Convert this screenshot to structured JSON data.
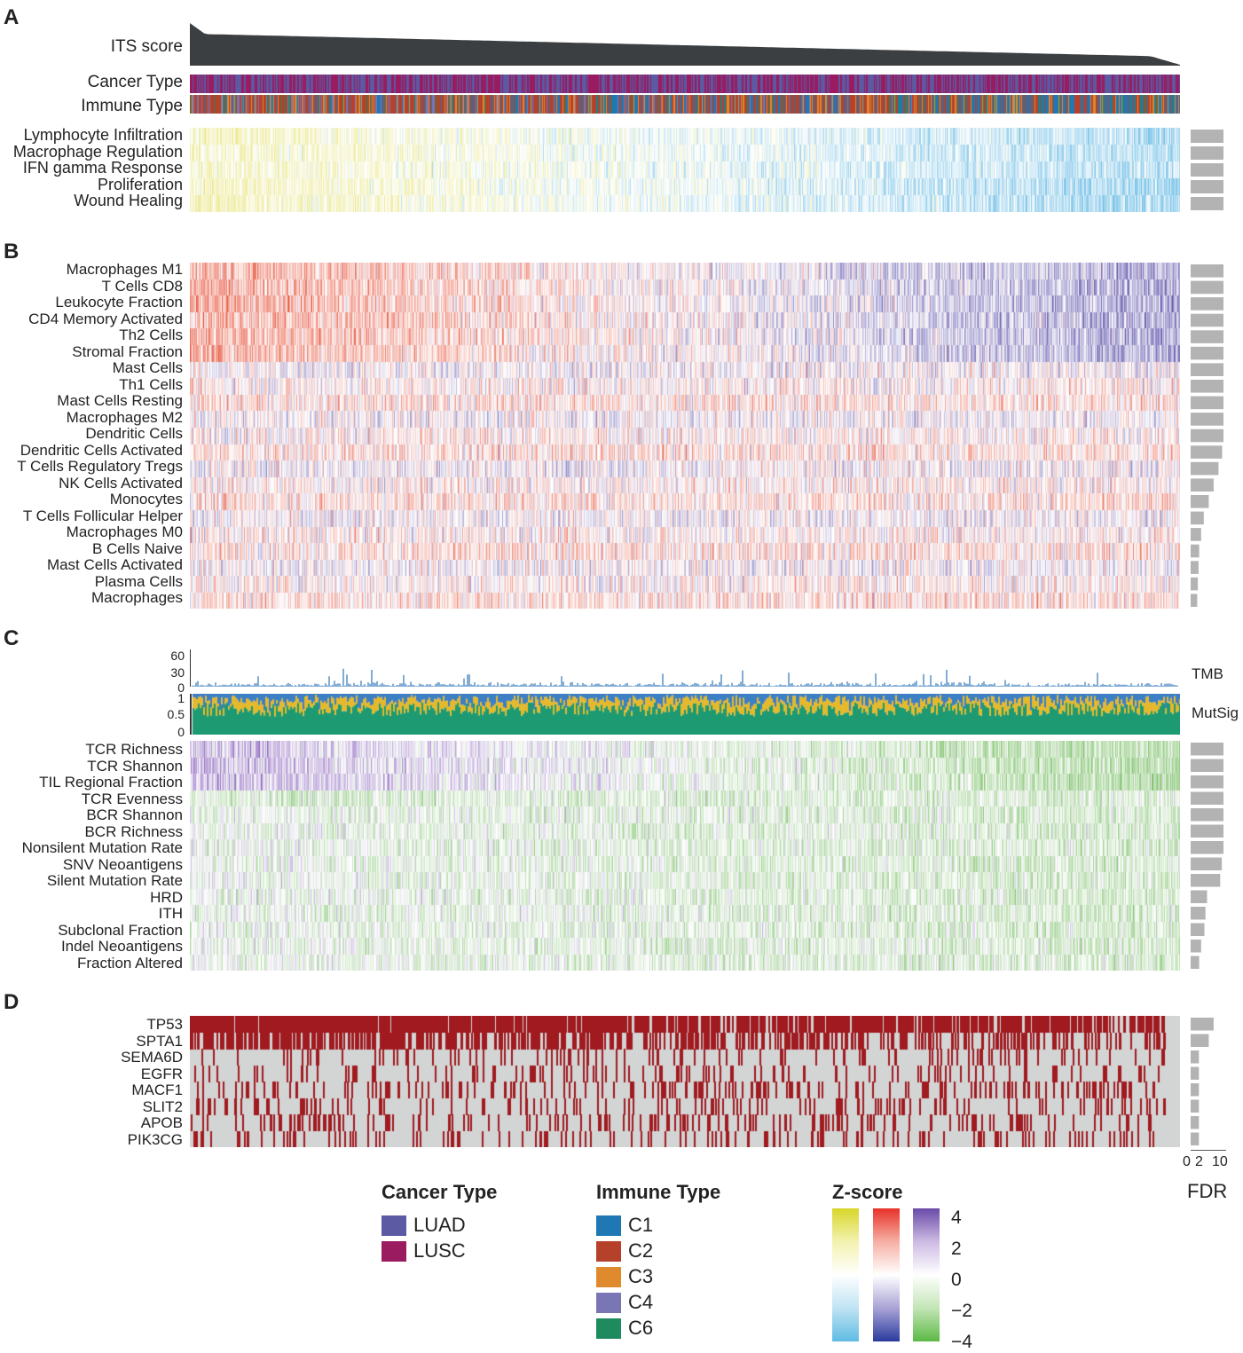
{
  "panels": {
    "A": "A",
    "B": "B",
    "C": "C",
    "D": "D"
  },
  "panelA": {
    "its_label": "ITS score",
    "cancer_label": "Cancer Type",
    "immune_label": "Immune Type",
    "rows": [
      "Lymphocyte Infiltration",
      "Macrophage Regulation",
      "IFN gamma Response",
      "Proliferation",
      "Wound Healing"
    ],
    "fdr": [
      10,
      10,
      10,
      10,
      10
    ]
  },
  "panelB": {
    "rows": [
      "Macrophages M1",
      "T Cells CD8",
      "Leukocyte Fraction",
      "CD4 Memory Activated",
      "Th2 Cells",
      "Stromal Fraction",
      "Mast Cells",
      "Th1 Cells",
      "Mast Cells Resting",
      "Macrophages M2",
      "Dendritic Cells",
      "Dendritic Cells Activated",
      "T Cells Regulatory Tregs",
      "NK Cells Activated",
      "Monocytes",
      "T Cells Follicular Helper",
      "Macrophages M0",
      "B Cells Naive",
      "Mast Cells Activated",
      "Plasma Cells",
      "Macrophages"
    ],
    "fdr": [
      10,
      10,
      10,
      10,
      10,
      10,
      10,
      10,
      10,
      10,
      10,
      9.6,
      8.5,
      7,
      5.5,
      4,
      3.2,
      2.6,
      2.4,
      2.2,
      2
    ]
  },
  "panelC": {
    "tmb_label": "TMB",
    "mutsig_label": "MutSig",
    "tmb_ticks": [
      "60",
      "30",
      "0"
    ],
    "mutsig_ticks": [
      "1",
      "0.5",
      "0"
    ],
    "rows": [
      "TCR Richness",
      "TCR Shannon",
      "TIL Regional Fraction",
      "TCR Evenness",
      "BCR Shannon",
      "BCR Richness",
      "Nonsilent Mutation Rate",
      "SNV Neoantigens",
      "Silent Mutation Rate",
      "HRD",
      "ITH",
      "Subclonal Fraction",
      "Indel Neoantigens",
      "Fraction Altered"
    ],
    "fdr": [
      10,
      10,
      10,
      10,
      10,
      10,
      10,
      9.5,
      9,
      5,
      4.5,
      4.2,
      3.2,
      2.6
    ]
  },
  "panelD": {
    "rows": [
      "TP53",
      "SPTA1",
      "SEMA6D",
      "EGFR",
      "MACF1",
      "SLIT2",
      "APOB",
      "PIK3CG"
    ],
    "fdr": [
      7,
      5.5,
      2.5,
      2.5,
      2.5,
      2.5,
      2.5,
      2.5
    ],
    "mutation_rate": [
      0.75,
      0.4,
      0.1,
      0.1,
      0.18,
      0.11,
      0.15,
      0.12
    ]
  },
  "fdr_axis": {
    "ticks": [
      "0",
      "2",
      "10"
    ],
    "label": "FDR"
  },
  "legend": {
    "cancer_title": "Cancer Type",
    "cancer": [
      {
        "label": "LUAD",
        "color": "#5b5aa3"
      },
      {
        "label": "LUSC",
        "color": "#9a1b5f"
      }
    ],
    "immune_title": "Immune Type",
    "immune": [
      {
        "label": "C1",
        "color": "#1f77b4"
      },
      {
        "label": "C2",
        "color": "#b5412a"
      },
      {
        "label": "C3",
        "color": "#e08a2e"
      },
      {
        "label": "C4",
        "color": "#7a76b6"
      },
      {
        "label": "C6",
        "color": "#1e8a5e"
      }
    ],
    "zscore_title": "Z-score",
    "zscore_ticks": [
      "4",
      "2",
      "0",
      "−2",
      "−4"
    ]
  },
  "chart_data": {
    "type": "heatmap",
    "samples_shown": 1116,
    "z_range": [
      -4,
      4
    ],
    "its_score_trend": "decreasing left to right",
    "tmb_ylim": [
      0,
      60
    ],
    "mutsig_ylim": [
      0,
      1
    ],
    "fdr_axis_ticks": [
      0,
      2,
      10
    ]
  }
}
